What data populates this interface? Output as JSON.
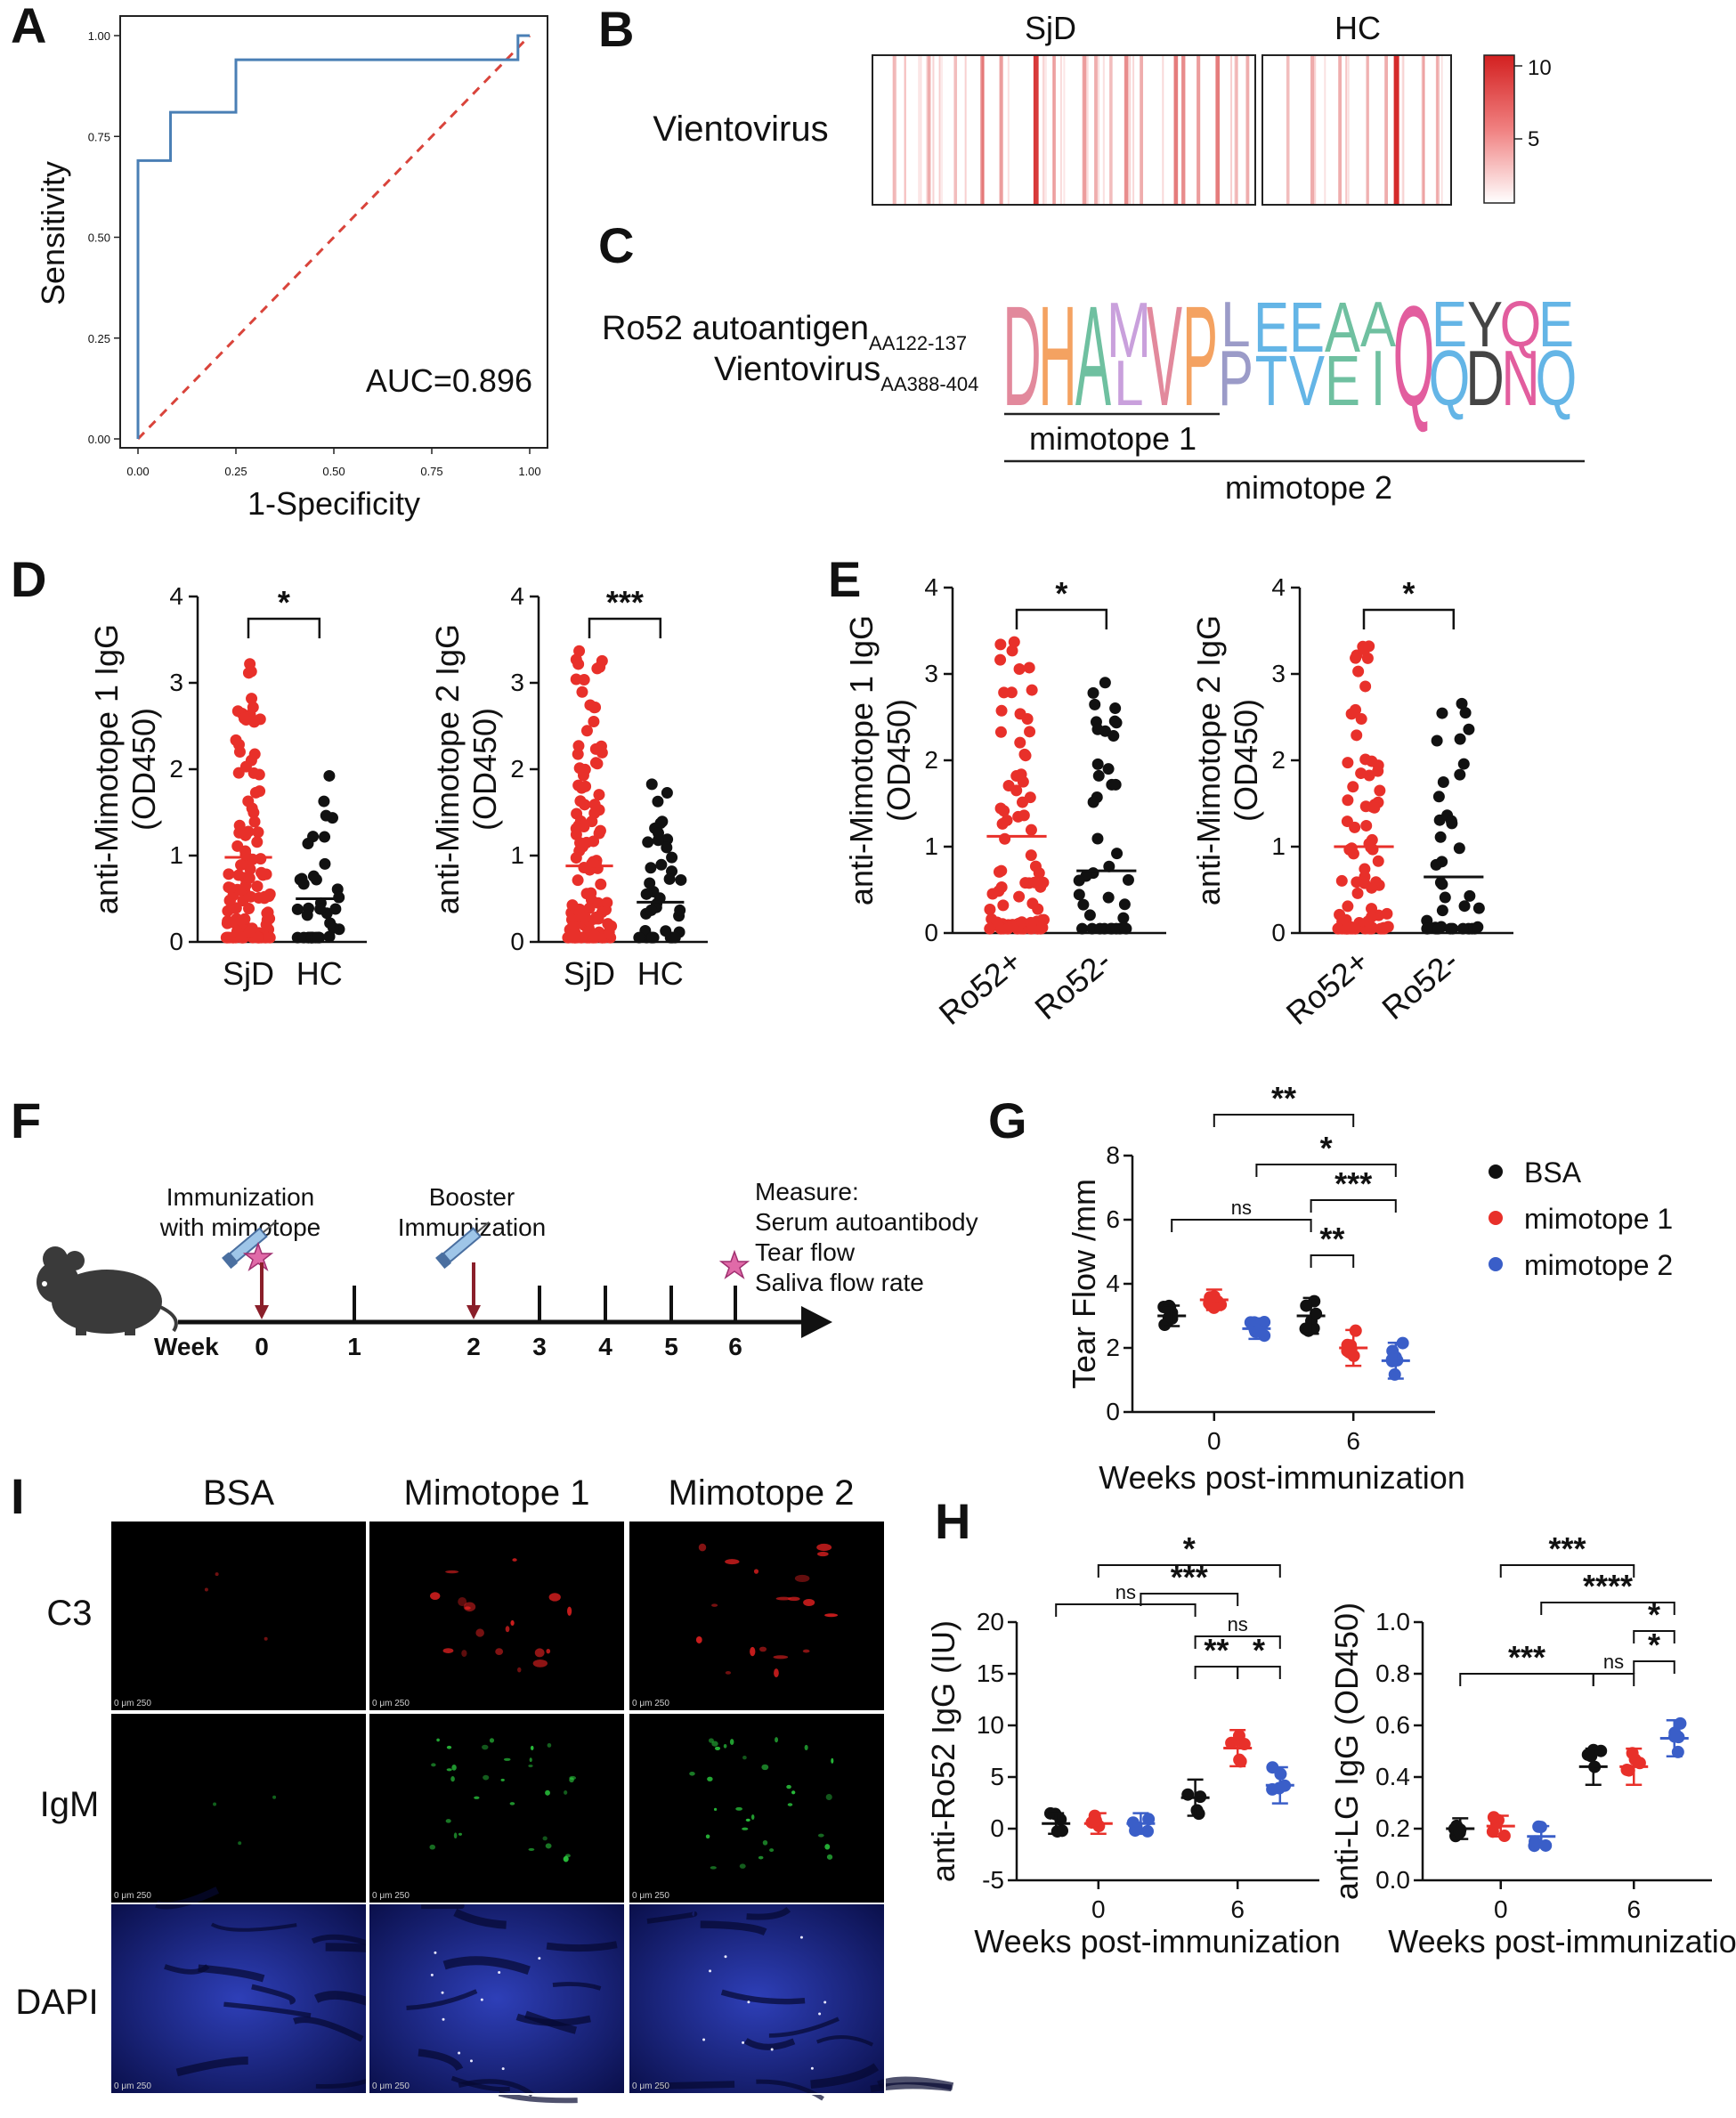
{
  "panels": {
    "A": "A",
    "B": "B",
    "C": "C",
    "D": "D",
    "E": "E",
    "F": "F",
    "G": "G",
    "H": "H",
    "I": "I"
  },
  "colors": {
    "sjd": "#e8302a",
    "hc": "#111111",
    "m2": "#3a5ec8",
    "roc": "#4a7fb5",
    "diag": "#d9443b"
  },
  "roc": {
    "xlabel": "1-Specificity",
    "ylabel": "Sensitivity",
    "auc": "AUC=0.896",
    "xticks": [
      "0.00",
      "0.25",
      "0.50",
      "0.75",
      "1.00"
    ],
    "yticks": [
      "0.00",
      "0.25",
      "0.50",
      "0.75",
      "1.00"
    ],
    "curve": [
      [
        0,
        0
      ],
      [
        0,
        0.69
      ],
      [
        0.083,
        0.69
      ],
      [
        0.083,
        0.81
      ],
      [
        0.25,
        0.81
      ],
      [
        0.25,
        0.94
      ],
      [
        0.97,
        0.94
      ],
      [
        0.97,
        1.0
      ],
      [
        1.0,
        1.0
      ]
    ]
  },
  "heat": {
    "row_label": "Vientovirus",
    "groups": [
      "SjD",
      "HC"
    ],
    "legend_ticks": [
      "10",
      "5"
    ],
    "sjd_bars": [
      [
        0.05,
        2
      ],
      [
        0.14,
        3
      ],
      [
        0.21,
        2
      ],
      [
        0.28,
        5
      ],
      [
        0.33,
        4
      ],
      [
        0.42,
        10
      ],
      [
        0.47,
        3
      ],
      [
        0.55,
        4
      ],
      [
        0.58,
        3
      ],
      [
        0.62,
        2
      ],
      [
        0.66,
        5
      ],
      [
        0.7,
        3
      ],
      [
        0.79,
        6
      ],
      [
        0.81,
        5
      ],
      [
        0.85,
        4
      ],
      [
        0.9,
        6
      ],
      [
        0.95,
        2
      ],
      [
        0.98,
        3
      ]
    ],
    "hc_bars": [
      [
        0.12,
        2
      ],
      [
        0.25,
        3
      ],
      [
        0.4,
        3
      ],
      [
        0.55,
        2
      ],
      [
        0.65,
        3
      ],
      [
        0.7,
        11
      ],
      [
        0.85,
        2
      ],
      [
        0.93,
        2
      ]
    ]
  },
  "logo": {
    "top_label": "Ro52 autoantigen",
    "top_sub": "AA122-137",
    "bottom_label": "Vientovirus",
    "bottom_sub": "AA388-404",
    "mimotope1": "mimotope 1",
    "mimotope2": "mimotope 2",
    "letters": [
      {
        "c": "D",
        "col": "#e2899c",
        "big": 1,
        "sub": ""
      },
      {
        "c": "H",
        "col": "#f4a261",
        "big": 1,
        "sub": ""
      },
      {
        "c": "A",
        "col": "#6fc0a0",
        "big": 1,
        "sub": ""
      },
      {
        "c": "M",
        "col": "#c9a0dc",
        "big": 0.55,
        "sub": "L"
      },
      {
        "c": "V",
        "col": "#e2899c",
        "big": 1,
        "sub": ""
      },
      {
        "c": "P",
        "col": "#f4a261",
        "big": 1,
        "sub": ""
      },
      {
        "c": "L",
        "col": "#9b9bc8",
        "big": 0.45,
        "sub": "P"
      },
      {
        "c": "E",
        "col": "#64b5e6",
        "big": 0.5,
        "sub": "T"
      },
      {
        "c": "E",
        "col": "#64b5e6",
        "big": 0.5,
        "sub": "V"
      },
      {
        "c": "A",
        "col": "#6fc0a0",
        "big": 0.5,
        "sub": "E"
      },
      {
        "c": "A",
        "col": "#6fc0a0",
        "big": 0.45,
        "sub": "I"
      },
      {
        "c": "Q",
        "col": "#e25d9e",
        "big": 1,
        "sub": "P"
      },
      {
        "c": "E",
        "col": "#64b5e6",
        "big": 0.45,
        "sub": "Q"
      },
      {
        "c": "Y",
        "col": "#444444",
        "big": 0.45,
        "sub": "D"
      },
      {
        "c": "Q",
        "col": "#e25d9e",
        "big": 0.45,
        "sub": "N"
      },
      {
        "c": "E",
        "col": "#64b5e6",
        "big": 0.45,
        "sub": "Q"
      }
    ]
  },
  "chart_data": [
    {
      "id": "D1",
      "type": "scatter",
      "ylabel": "anti-Mimotope 1 IgG",
      "ylabel2": "(OD450)",
      "categories": [
        "SjD",
        "HC"
      ],
      "ylim": [
        0,
        4
      ],
      "yticks": [
        "0",
        "1",
        "2",
        "3",
        "4"
      ],
      "means": [
        0.98,
        0.5
      ],
      "sig": "*"
    },
    {
      "id": "D2",
      "type": "scatter",
      "ylabel": "anti-Mimotope 2 IgG",
      "ylabel2": "(OD450)",
      "categories": [
        "SjD",
        "HC"
      ],
      "ylim": [
        0,
        4
      ],
      "yticks": [
        "0",
        "1",
        "2",
        "3",
        "4"
      ],
      "means": [
        0.88,
        0.46
      ],
      "sig": "***"
    },
    {
      "id": "E1",
      "type": "scatter",
      "ylabel": "anti-Mimotope 1 IgG",
      "ylabel2": "(OD450)",
      "categories": [
        "Ro52+",
        "Ro52-"
      ],
      "ylim": [
        0,
        4
      ],
      "yticks": [
        "0",
        "1",
        "2",
        "3",
        "4"
      ],
      "means": [
        1.12,
        0.72
      ],
      "sig": "*"
    },
    {
      "id": "E2",
      "type": "scatter",
      "ylabel": "anti-Mimotope 2 IgG",
      "ylabel2": "(OD450)",
      "categories": [
        "Ro52+",
        "Ro52-"
      ],
      "ylim": [
        0,
        4
      ],
      "yticks": [
        "0",
        "1",
        "2",
        "3",
        "4"
      ],
      "means": [
        1.0,
        0.65
      ],
      "sig": "*"
    },
    {
      "id": "G",
      "type": "scatter",
      "ylabel": "Tear Flow /mm",
      "xlabel": "Weeks post-immunization",
      "categories": [
        "0",
        "6"
      ],
      "ylim": [
        0,
        8
      ],
      "yticks": [
        "0",
        "2",
        "4",
        "6",
        "8"
      ],
      "series": [
        {
          "name": "BSA",
          "means": [
            3,
            3
          ]
        },
        {
          "name": "mimotope 1",
          "means": [
            3.5,
            2
          ]
        },
        {
          "name": "mimotope 2",
          "means": [
            2.6,
            1.6
          ]
        }
      ]
    },
    {
      "id": "H1",
      "type": "scatter",
      "ylabel": "anti-Ro52 IgG (IU)",
      "xlabel": "Weeks post-immunization",
      "categories": [
        "0",
        "6"
      ],
      "ylim": [
        -5,
        20
      ],
      "yticks": [
        "-5",
        "0",
        "5",
        "10",
        "15",
        "20"
      ],
      "series": [
        {
          "name": "BSA",
          "means": [
            0.5,
            3
          ]
        },
        {
          "name": "mimotope 1",
          "means": [
            0.5,
            7.8
          ]
        },
        {
          "name": "mimotope 2",
          "means": [
            0.5,
            4.2
          ]
        }
      ]
    },
    {
      "id": "H2",
      "type": "scatter",
      "ylabel": "anti-LG IgG (OD450)",
      "xlabel": "Weeks post-immunization",
      "categories": [
        "0",
        "6"
      ],
      "ylim": [
        0,
        1
      ],
      "yticks": [
        "0.0",
        "0.2",
        "0.4",
        "0.6",
        "0.8",
        "1.0"
      ],
      "series": [
        {
          "name": "BSA",
          "means": [
            0.2,
            0.44
          ]
        },
        {
          "name": "mimotope 1",
          "means": [
            0.21,
            0.44
          ]
        },
        {
          "name": "mimotope 2",
          "means": [
            0.17,
            0.55
          ]
        }
      ]
    }
  ],
  "legendG": [
    "BSA",
    "mimotope 1",
    "mimotope 2"
  ],
  "timeline": {
    "week": "Week",
    "ticks": [
      "0",
      "1",
      "2",
      "3",
      "4",
      "5",
      "6"
    ],
    "immun1": "Immunization",
    "immun2": "with mimotope",
    "boost1": "Booster",
    "boost2": "Immunization",
    "measure": [
      "Measure:",
      "Serum autoantibody",
      "Tear flow",
      "Saliva flow rate"
    ]
  },
  "micro": {
    "cols": [
      "BSA",
      "Mimotope 1",
      "Mimotope 2"
    ],
    "rows": [
      "C3",
      "IgM",
      "DAPI"
    ],
    "scale": "0   μm   250"
  },
  "sigs": {
    "g1": "**",
    "g2": "*",
    "g3": "ns",
    "g4": "***",
    "g5": "**",
    "h1a": "*",
    "h1b": "***",
    "h1c": "ns",
    "h1d": "ns",
    "h1e": "**",
    "h1f": "*",
    "h2a": "***",
    "h2b": "****",
    "h2c": "*",
    "h2d": "***",
    "h2e": "ns",
    "h2f": "*"
  }
}
